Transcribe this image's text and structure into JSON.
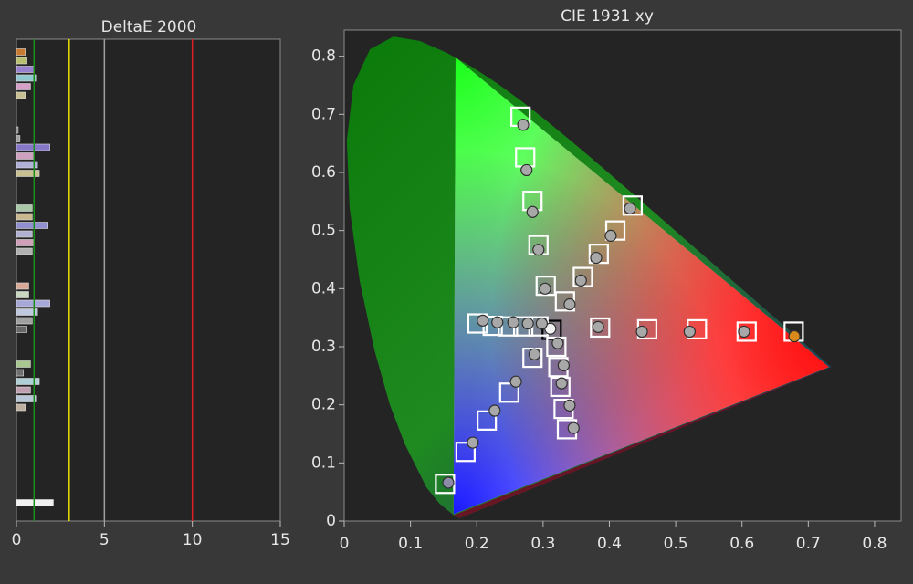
{
  "chart_data": [
    {
      "type": "hbar",
      "title": "DeltaE 2000",
      "values": [
        0.5,
        0.6,
        1.0,
        1.1,
        0.8,
        0.5,
        null,
        null,
        null,
        0.1,
        0.2,
        1.9,
        1.0,
        1.2,
        1.3,
        null,
        null,
        null,
        0.9,
        0.9,
        1.8,
        0.9,
        1.0,
        0.9,
        null,
        null,
        null,
        0.7,
        0.7,
        1.9,
        1.2,
        0.9,
        0.6,
        null,
        null,
        null,
        0.8,
        0.4,
        1.3,
        0.8,
        1.1,
        0.5,
        null,
        null,
        null,
        null,
        null,
        null,
        null,
        null,
        null,
        null,
        2.1
      ],
      "colors": [
        "#c87a30",
        "#b8c070",
        "#9a80d0",
        "#90c8d0",
        "#d8a0c8",
        "#c8c090",
        null,
        null,
        null,
        "#808080",
        "#a0a0a0",
        "#8878c8",
        "#d0a0c0",
        "#b0b0d8",
        "#c8c090",
        null,
        null,
        null,
        "#a8c8a8",
        "#c8b890",
        "#9090d0",
        "#b0b0d0",
        "#d0a0b8",
        "#b0b0b0",
        null,
        null,
        null,
        "#d8a898",
        "#c8d8c0",
        "#a8a8d8",
        "#c0c8e0",
        "#a0a0a0",
        "#686868",
        null,
        null,
        null,
        "#a8c890",
        "#707070",
        "#b0d0d8",
        "#c0a0b0",
        "#b8c8d8",
        "#c0b0a0",
        null,
        null,
        null,
        null,
        null,
        null,
        null,
        null,
        null,
        null,
        "#f0f0f0"
      ],
      "xlim": [
        0,
        15
      ],
      "xticks": [
        0,
        5,
        10,
        15
      ],
      "reference_lines": [
        {
          "value": 1,
          "color": "#1a8f1a"
        },
        {
          "value": 3,
          "color": "#e8e000"
        },
        {
          "value": 5,
          "color": "#a0a0a0"
        },
        {
          "value": 10,
          "color": "#e02020"
        }
      ]
    },
    {
      "type": "scatter",
      "title": "CIE 1931 xy",
      "xlim": [
        0,
        0.84
      ],
      "ylim": [
        0,
        0.845
      ],
      "xticks": [
        0,
        0.1,
        0.2,
        0.3,
        0.4,
        0.5,
        0.6,
        0.7,
        0.8
      ],
      "yticks": [
        0,
        0.1,
        0.2,
        0.3,
        0.4,
        0.5,
        0.6,
        0.7,
        0.8
      ],
      "series": [
        {
          "marker": "square",
          "x": [
            0.313,
            0.386,
            0.457,
            0.532,
            0.607,
            0.678,
            0.201,
            0.224,
            0.247,
            0.27,
            0.293,
            0.266,
            0.273,
            0.284,
            0.293,
            0.304,
            0.152,
            0.183,
            0.215,
            0.249,
            0.284,
            0.435,
            0.409,
            0.384,
            0.36,
            0.333,
            0.336,
            0.331,
            0.326,
            0.323,
            0.32
          ],
          "values": [
            0.329,
            0.333,
            0.33,
            0.33,
            0.326,
            0.326,
            0.34,
            0.336,
            0.335,
            0.335,
            0.335,
            0.696,
            0.626,
            0.551,
            0.475,
            0.405,
            0.064,
            0.119,
            0.173,
            0.221,
            0.281,
            0.543,
            0.5,
            0.46,
            0.42,
            0.378,
            0.158,
            0.193,
            0.231,
            0.265,
            0.3
          ],
          "colors": [
            "#000000",
            "#ffffff",
            "#ffffff",
            "#ffffff",
            "#ffffff",
            "#ffffff",
            "#ffffff",
            "#ffffff",
            "#ffffff",
            "#ffffff",
            "#ffffff",
            "#ffffff",
            "#ffffff",
            "#ffffff",
            "#ffffff",
            "#ffffff",
            "#ffffff",
            "#ffffff",
            "#ffffff",
            "#ffffff",
            "#ffffff",
            "#ffffff",
            "#ffffff",
            "#ffffff",
            "#ffffff",
            "#ffffff",
            "#ffffff",
            "#ffffff",
            "#ffffff",
            "#ffffff",
            "#ffffff"
          ]
        },
        {
          "marker": "circle",
          "x": [
            0.311,
            0.383,
            0.449,
            0.521,
            0.603,
            0.679,
            0.209,
            0.231,
            0.255,
            0.277,
            0.298,
            0.27,
            0.275,
            0.284,
            0.293,
            0.303,
            0.157,
            0.194,
            0.227,
            0.259,
            0.287,
            0.431,
            0.402,
            0.38,
            0.357,
            0.34,
            0.346,
            0.34,
            0.328,
            0.331,
            0.322
          ],
          "values": [
            0.331,
            0.334,
            0.326,
            0.326,
            0.326,
            0.318,
            0.345,
            0.342,
            0.342,
            0.34,
            0.34,
            0.682,
            0.604,
            0.532,
            0.467,
            0.4,
            0.066,
            0.135,
            0.19,
            0.24,
            0.287,
            0.538,
            0.491,
            0.453,
            0.414,
            0.373,
            0.16,
            0.199,
            0.237,
            0.268,
            0.306
          ],
          "colors": [
            "#f2f2f2",
            "#a8a8a8",
            "#a8a8a8",
            "#a8a8a8",
            "#a8a8a8",
            "#d98a1a",
            "#a8a8a8",
            "#a8a8a8",
            "#a8a8a8",
            "#a8a8a8",
            "#a8a8a8",
            "#a8a8a8",
            "#a8a8a8",
            "#a8a8a8",
            "#a8a8a8",
            "#a8a8a8",
            "#8c8ca8",
            "#a8a8a8",
            "#a8a8a8",
            "#a8a8a8",
            "#a8a8a8",
            "#a8a8a8",
            "#a8a8a8",
            "#a8a8a8",
            "#a8a8a8",
            "#a8a8a8",
            "#a8a8a8",
            "#a8a8a8",
            "#a8a8a8",
            "#a8a8a8",
            "#a8a8a8"
          ]
        }
      ]
    }
  ]
}
